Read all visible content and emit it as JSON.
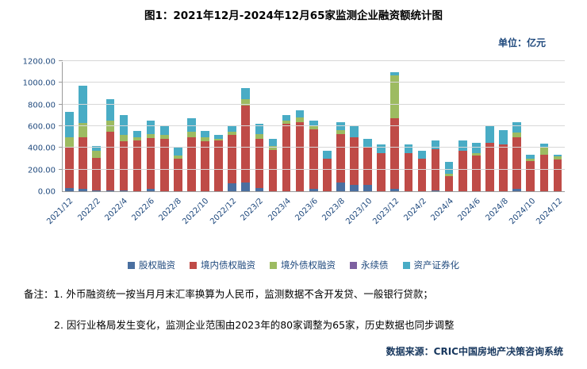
{
  "title": "图1：2021年12月-2024年12月65家监测企业融资额统计图",
  "unit_label": "单位：亿元",
  "chart_data": {
    "type": "bar",
    "stacked": true,
    "title": "图1：2021年12月-2024年12月65家监测企业融资额统计图",
    "unit": "亿元",
    "ylim": [
      0,
      1200
    ],
    "ytick_interval": 200,
    "grid": true,
    "legend_position": "bottom",
    "x_label_step": 2,
    "categories": [
      "2021/12",
      "2022/1",
      "2022/2",
      "2022/3",
      "2022/4",
      "2022/5",
      "2022/6",
      "2022/7",
      "2022/8",
      "2022/9",
      "2022/10",
      "2022/11",
      "2022/12",
      "2023/1",
      "2023/2",
      "2023/3",
      "2023/4",
      "2023/5",
      "2023/6",
      "2023/7",
      "2023/8",
      "2023/9",
      "2023/10",
      "2023/11",
      "2023/12",
      "2024/1",
      "2024/2",
      "2024/3",
      "2024/4",
      "2024/5",
      "2024/6",
      "2024/7",
      "2024/8",
      "2024/9",
      "2024/10",
      "2024/11",
      "2024/12"
    ],
    "series": [
      {
        "name": "股权融资",
        "color": "#4a6fa0",
        "values": [
          30,
          20,
          10,
          10,
          10,
          0,
          20,
          0,
          0,
          0,
          0,
          0,
          70,
          80,
          30,
          0,
          0,
          0,
          20,
          0,
          80,
          60,
          60,
          0,
          20,
          0,
          0,
          10,
          0,
          0,
          0,
          0,
          0,
          20,
          0,
          0,
          0
        ]
      },
      {
        "name": "境内债权融资",
        "color": "#bf4b47",
        "values": [
          380,
          480,
          300,
          540,
          450,
          470,
          470,
          480,
          300,
          500,
          460,
          470,
          450,
          710,
          450,
          380,
          620,
          640,
          550,
          300,
          450,
          440,
          350,
          350,
          650,
          350,
          300,
          380,
          140,
          370,
          330,
          450,
          430,
          480,
          280,
          340,
          290
        ]
      },
      {
        "name": "境外债权融资",
        "color": "#9dbb61",
        "values": [
          90,
          130,
          60,
          100,
          60,
          30,
          40,
          40,
          30,
          50,
          40,
          10,
          30,
          60,
          50,
          40,
          30,
          40,
          30,
          0,
          30,
          0,
          0,
          0,
          400,
          0,
          0,
          0,
          20,
          0,
          20,
          0,
          0,
          40,
          20,
          60,
          30
        ]
      },
      {
        "name": "永续债",
        "color": "#7d60a0",
        "values": [
          0,
          0,
          0,
          0,
          0,
          0,
          0,
          0,
          0,
          0,
          0,
          0,
          0,
          0,
          0,
          0,
          0,
          0,
          0,
          0,
          0,
          0,
          0,
          0,
          0,
          0,
          0,
          0,
          0,
          0,
          0,
          0,
          0,
          0,
          0,
          0,
          0
        ]
      },
      {
        "name": "资产证券化",
        "color": "#49acc5",
        "values": [
          230,
          340,
          50,
          200,
          180,
          60,
          120,
          80,
          70,
          120,
          60,
          40,
          60,
          100,
          90,
          60,
          50,
          70,
          50,
          70,
          80,
          100,
          70,
          80,
          30,
          80,
          70,
          80,
          110,
          100,
          100,
          150,
          130,
          100,
          40,
          40,
          20
        ]
      }
    ]
  },
  "notes": {
    "line1": "备注：1. 外币融资统一按当月月末汇率换算为人民币，监测数据不含开发贷、一般银行贷款；",
    "line2": "2. 因行业格局发生变化，监测企业范围由2023年的80家调整为65家，历史数据也同步调整"
  },
  "source": "数据来源：CRIC中国房地产决策咨询系统"
}
